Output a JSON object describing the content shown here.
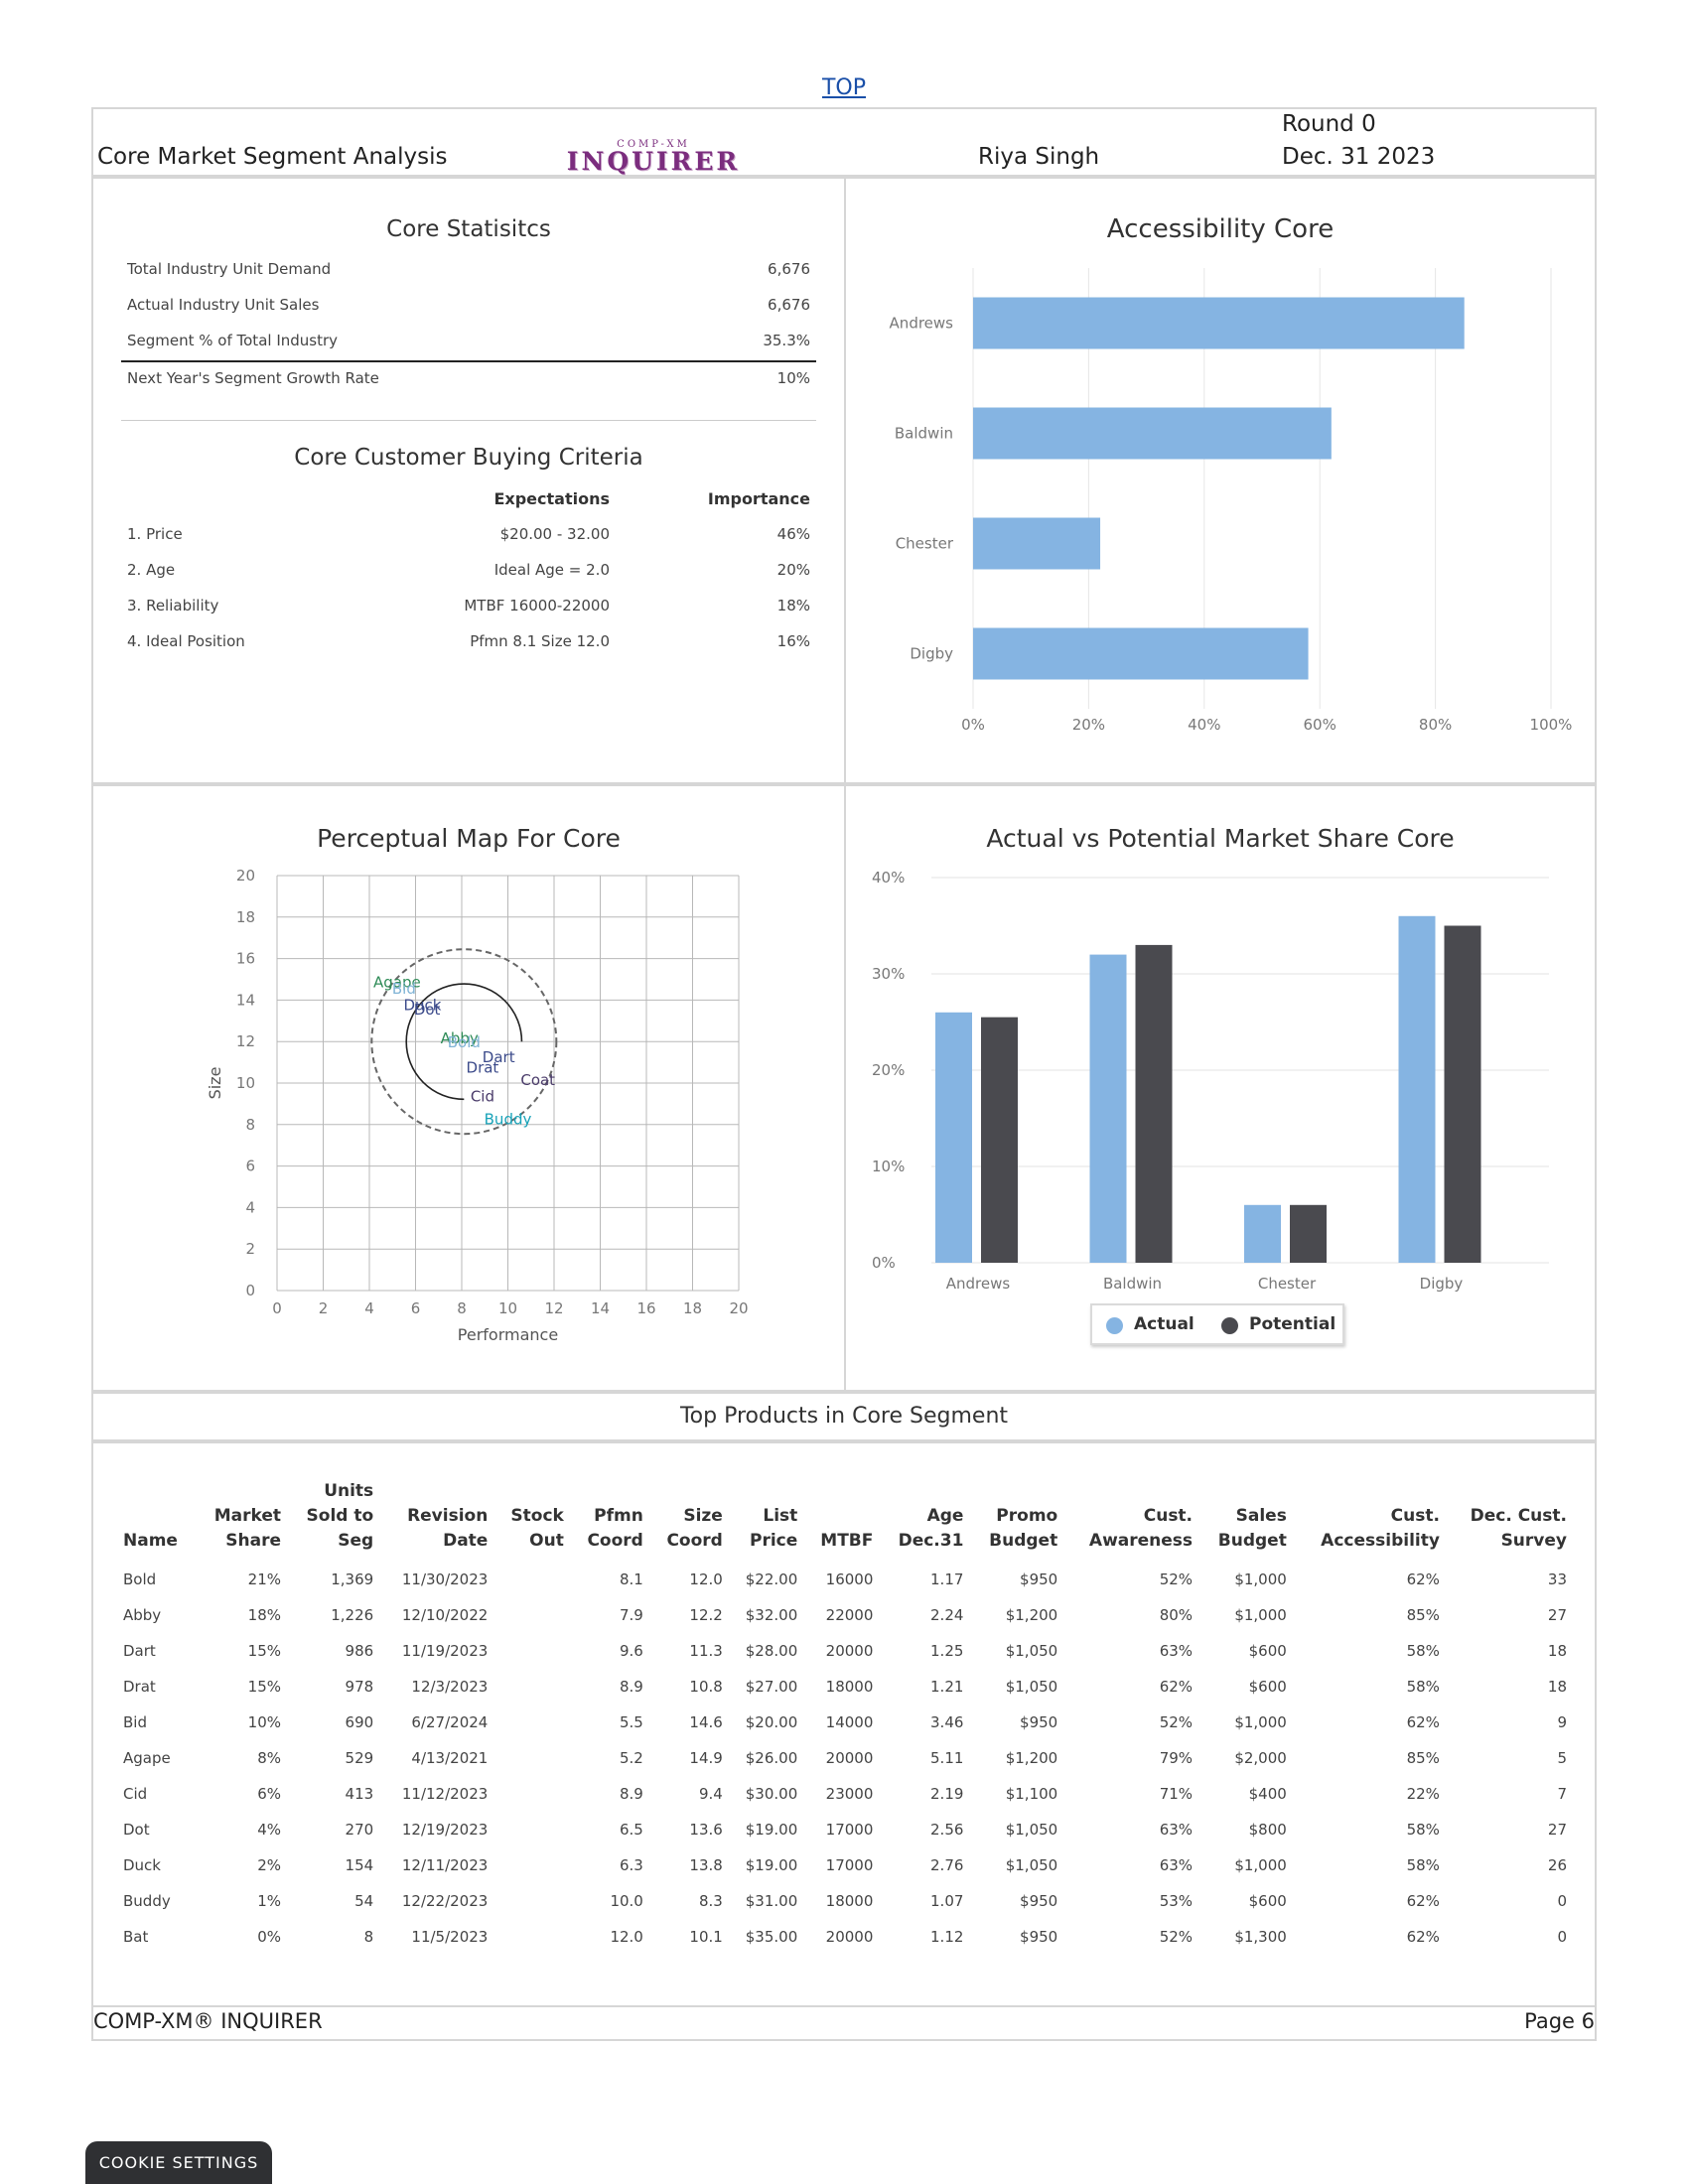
{
  "top_link": "TOP",
  "header": {
    "title": "Core Market Segment Analysis",
    "logo_small": "COMP-XM",
    "logo_big": "INQUIRER",
    "user": "Riya Singh",
    "round": "Round 0",
    "date": "Dec. 31 2023"
  },
  "stats": {
    "title": "Core Statisitcs",
    "rows": [
      {
        "label": "Total Industry Unit Demand",
        "value": "6,676"
      },
      {
        "label": "Actual Industry Unit Sales",
        "value": "6,676"
      },
      {
        "label": "Segment % of Total Industry",
        "value": "35.3%"
      },
      {
        "label": "Next Year's Segment Growth Rate",
        "value": "10%"
      }
    ]
  },
  "criteria": {
    "title": "Core Customer Buying Criteria",
    "col_expectations": "Expectations",
    "col_importance": "Importance",
    "rows": [
      {
        "label": "1. Price",
        "expectation": "$20.00 - 32.00",
        "importance": "46%"
      },
      {
        "label": "2. Age",
        "expectation": "Ideal Age = 2.0",
        "importance": "20%"
      },
      {
        "label": "3. Reliability",
        "expectation": "MTBF 16000-22000",
        "importance": "18%"
      },
      {
        "label": "4. Ideal Position",
        "expectation": "Pfmn 8.1 Size 12.0",
        "importance": "16%"
      }
    ]
  },
  "accessibility_chart": {
    "title": "Accessibility Core",
    "color": "#85b4e2"
  },
  "perceptual_map": {
    "title": "Perceptual Map For Core",
    "xlabel": "Performance",
    "ylabel": "Size"
  },
  "market_share_chart": {
    "title": "Actual vs Potential Market Share Core",
    "legend_actual": "Actual",
    "legend_potential": "Potential",
    "color_actual": "#85b4e2",
    "color_potential": "#4a4a4f"
  },
  "chart_data": [
    {
      "type": "bar",
      "orientation": "horizontal",
      "title": "Accessibility Core",
      "categories": [
        "Andrews",
        "Baldwin",
        "Chester",
        "Digby"
      ],
      "values": [
        85,
        62,
        22,
        58
      ],
      "unit": "%",
      "xlim": [
        0,
        100
      ],
      "xticks": [
        "0%",
        "20%",
        "40%",
        "60%",
        "80%",
        "100%"
      ]
    },
    {
      "type": "scatter",
      "title": "Perceptual Map For Core",
      "xlabel": "Performance",
      "ylabel": "Size",
      "xlim": [
        0,
        20
      ],
      "ylim": [
        0,
        20
      ],
      "ticks": [
        "0",
        "2",
        "4",
        "6",
        "8",
        "10",
        "12",
        "14",
        "16",
        "18",
        "20"
      ],
      "points": [
        {
          "name": "Agape",
          "x": 5.2,
          "y": 14.9,
          "color": "#2e8b57"
        },
        {
          "name": "Bid",
          "x": 5.5,
          "y": 14.6,
          "color": "#7fb3d5"
        },
        {
          "name": "Duck",
          "x": 6.3,
          "y": 13.8,
          "color": "#3b4a8a"
        },
        {
          "name": "Dot",
          "x": 6.5,
          "y": 13.6,
          "color": "#3b4a8a"
        },
        {
          "name": "Abby",
          "x": 7.9,
          "y": 12.2,
          "color": "#2e8b57"
        },
        {
          "name": "Bold",
          "x": 8.1,
          "y": 12.0,
          "color": "#7fb3d5"
        },
        {
          "name": "Dart",
          "x": 9.6,
          "y": 11.3,
          "color": "#3b4a8a"
        },
        {
          "name": "Drat",
          "x": 8.9,
          "y": 10.8,
          "color": "#3b4a8a"
        },
        {
          "name": "Coat",
          "x": 11.3,
          "y": 10.2,
          "color": "#4a3b6a"
        },
        {
          "name": "Cid",
          "x": 8.9,
          "y": 9.4,
          "color": "#4a3b6a"
        },
        {
          "name": "Buddy",
          "x": 10.0,
          "y": 8.3,
          "color": "#17a2b8"
        }
      ],
      "ideal_circle": {
        "x": 8.1,
        "y": 12.0
      }
    },
    {
      "type": "bar",
      "title": "Actual vs Potential Market Share Core",
      "categories": [
        "Andrews",
        "Baldwin",
        "Chester",
        "Digby"
      ],
      "series": [
        {
          "name": "Actual",
          "values": [
            26,
            32,
            6,
            36
          ]
        },
        {
          "name": "Potential",
          "values": [
            25.5,
            33,
            6,
            35
          ]
        }
      ],
      "ylim": [
        0,
        40
      ],
      "yticks": [
        "0%",
        "10%",
        "20%",
        "30%",
        "40%"
      ],
      "legend": "bottom"
    }
  ],
  "products": {
    "title": "Top Products in Core Segment",
    "headers": [
      [
        "Name"
      ],
      [
        "Market",
        "Share"
      ],
      [
        "Units",
        "Sold to",
        "Seg"
      ],
      [
        "Revision",
        "Date"
      ],
      [
        "Stock",
        "Out"
      ],
      [
        "Pfmn",
        "Coord"
      ],
      [
        "Size",
        "Coord"
      ],
      [
        "List",
        "Price"
      ],
      [
        "MTBF"
      ],
      [
        "Age",
        "Dec.31"
      ],
      [
        "Promo",
        "Budget"
      ],
      [
        "Cust.",
        "Awareness"
      ],
      [
        "Sales",
        "Budget"
      ],
      [
        "Cust.",
        "Accessibility"
      ],
      [
        "Dec. Cust.",
        "Survey"
      ]
    ],
    "rows": [
      [
        "Bold",
        "21%",
        "1,369",
        "11/30/2023",
        "",
        "8.1",
        "12.0",
        "$22.00",
        "16000",
        "1.17",
        "$950",
        "52%",
        "$1,000",
        "62%",
        "33"
      ],
      [
        "Abby",
        "18%",
        "1,226",
        "12/10/2022",
        "",
        "7.9",
        "12.2",
        "$32.00",
        "22000",
        "2.24",
        "$1,200",
        "80%",
        "$1,000",
        "85%",
        "27"
      ],
      [
        "Dart",
        "15%",
        "986",
        "11/19/2023",
        "",
        "9.6",
        "11.3",
        "$28.00",
        "20000",
        "1.25",
        "$1,050",
        "63%",
        "$600",
        "58%",
        "18"
      ],
      [
        "Drat",
        "15%",
        "978",
        "12/3/2023",
        "",
        "8.9",
        "10.8",
        "$27.00",
        "18000",
        "1.21",
        "$1,050",
        "62%",
        "$600",
        "58%",
        "18"
      ],
      [
        "Bid",
        "10%",
        "690",
        "6/27/2024",
        "",
        "5.5",
        "14.6",
        "$20.00",
        "14000",
        "3.46",
        "$950",
        "52%",
        "$1,000",
        "62%",
        "9"
      ],
      [
        "Agape",
        "8%",
        "529",
        "4/13/2021",
        "",
        "5.2",
        "14.9",
        "$26.00",
        "20000",
        "5.11",
        "$1,200",
        "79%",
        "$2,000",
        "85%",
        "5"
      ],
      [
        "Cid",
        "6%",
        "413",
        "11/12/2023",
        "",
        "8.9",
        "9.4",
        "$30.00",
        "23000",
        "2.19",
        "$1,100",
        "71%",
        "$400",
        "22%",
        "7"
      ],
      [
        "Dot",
        "4%",
        "270",
        "12/19/2023",
        "",
        "6.5",
        "13.6",
        "$19.00",
        "17000",
        "2.56",
        "$1,050",
        "63%",
        "$800",
        "58%",
        "27"
      ],
      [
        "Duck",
        "2%",
        "154",
        "12/11/2023",
        "",
        "6.3",
        "13.8",
        "$19.00",
        "17000",
        "2.76",
        "$1,050",
        "63%",
        "$1,000",
        "58%",
        "26"
      ],
      [
        "Buddy",
        "1%",
        "54",
        "12/22/2023",
        "",
        "10.0",
        "8.3",
        "$31.00",
        "18000",
        "1.07",
        "$950",
        "53%",
        "$600",
        "62%",
        "0"
      ],
      [
        "Bat",
        "0%",
        "8",
        "11/5/2023",
        "",
        "12.0",
        "10.1",
        "$35.00",
        "20000",
        "1.12",
        "$950",
        "52%",
        "$1,300",
        "62%",
        "0"
      ]
    ]
  },
  "footer": {
    "left": "COMP-XM® INQUIRER",
    "right": "Page 6"
  },
  "cookie_button": "COOKIE SETTINGS"
}
